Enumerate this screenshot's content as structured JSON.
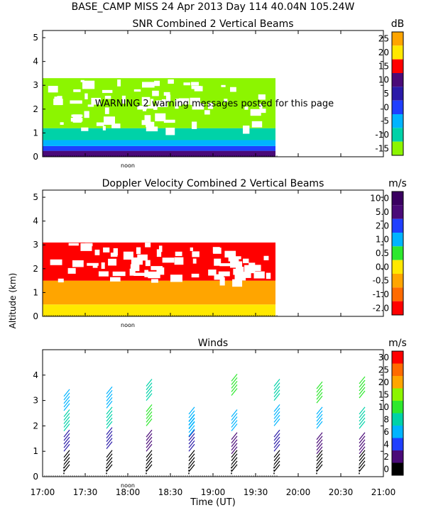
{
  "header": {
    "station_line": "BASE_CAMP MISS  24 Apr 2013 Day 114 40.04N 105.24W"
  },
  "warning": "WARNING  2 warning messages posted for this page",
  "shared": {
    "y_axis_label": "Altitude (km)",
    "x_axis_label": "Time (UT)",
    "noon_label": "noon",
    "x_tick_labels": [
      "17:00",
      "17:30",
      "18:00",
      "18:30",
      "19:00",
      "19:30",
      "20:00",
      "20:30",
      "21:00"
    ]
  },
  "colors": {
    "black": "#000000",
    "purple": "#4a0a78",
    "dark_blue": "#2a1aa8",
    "blue": "#1f3fff",
    "cyan": "#00b4ff",
    "teal": "#00d2a8",
    "green": "#2ee82e",
    "light_green": "#8cf500",
    "yellow": "#ffe800",
    "orange": "#ffa500",
    "red": "#ff0000"
  },
  "chart_data": [
    {
      "type": "heatmap",
      "title": "SNR Combined 2 Vertical Beams",
      "unit": "dB",
      "ylim": [
        0,
        5.3
      ],
      "y_ticks": [
        "0",
        "1",
        "2",
        "3",
        "4",
        "5"
      ],
      "xlim": [
        "17:00",
        "21:00"
      ],
      "data_time_range": [
        "17:00",
        "19:44"
      ],
      "colorbar_labels": [
        "25",
        "20",
        "15",
        "10",
        "5",
        "0",
        "-5",
        "-10",
        "-15"
      ],
      "colorbar_colors": [
        "#ffa500",
        "#ffe800",
        "#ff0000",
        "#4a0a78",
        "#2a1aa8",
        "#1f3fff",
        "#00b4ff",
        "#00d2a8",
        "#8cf500"
      ],
      "layers": [
        {
          "altitude_km": [
            0.0,
            0.25
          ],
          "color": "purple"
        },
        {
          "altitude_km": [
            0.25,
            0.45
          ],
          "color": "blue"
        },
        {
          "altitude_km": [
            0.45,
            0.7
          ],
          "color": "cyan"
        },
        {
          "altitude_km": [
            0.7,
            1.2
          ],
          "color": "teal"
        },
        {
          "altitude_km": [
            1.2,
            3.3
          ],
          "color": "light_green"
        }
      ]
    },
    {
      "type": "heatmap",
      "title": "Doppler Velocity Combined 2 Vertical Beams",
      "unit": "m/s",
      "ylim": [
        0,
        5.3
      ],
      "y_ticks": [
        "0",
        "1",
        "2",
        "3",
        "4",
        "5"
      ],
      "xlim": [
        "17:00",
        "21:00"
      ],
      "data_time_range": [
        "17:00",
        "19:44"
      ],
      "colorbar_labels": [
        "10.0",
        "5.0",
        "2.0",
        "1.0",
        "0.5",
        "0.0",
        "-0.5",
        "-1.0",
        "-2.0"
      ],
      "colorbar_colors": [
        "#3a0060",
        "#4a0a78",
        "#1f3fff",
        "#00b4ff",
        "#2ee82e",
        "#ffe800",
        "#ffa500",
        "#ff6a00",
        "#ff0000"
      ],
      "layers": [
        {
          "altitude_km": [
            0.0,
            0.5
          ],
          "color": "yellow"
        },
        {
          "altitude_km": [
            0.5,
            1.5
          ],
          "color": "orange"
        },
        {
          "altitude_km": [
            1.5,
            3.1
          ],
          "color": "red"
        }
      ]
    },
    {
      "type": "scatter",
      "title": "Winds",
      "unit": "m/s",
      "ylim": [
        0,
        5.0
      ],
      "y_ticks": [
        "0",
        "1",
        "2",
        "3",
        "4"
      ],
      "xlim": [
        "17:00",
        "21:00"
      ],
      "colorbar_labels": [
        "30",
        "25",
        "20",
        "15",
        "10",
        "8",
        "6",
        "4",
        "2",
        "0"
      ],
      "colorbar_colors": [
        "#ff0000",
        "#ff6a00",
        "#ffa500",
        "#8cf500",
        "#2ee82e",
        "#00d2a8",
        "#00b4ff",
        "#1f3fff",
        "#4a0a78",
        "#000000"
      ],
      "profiles": [
        {
          "time": "17:15",
          "speed_color": [
            "black",
            "dark_blue",
            "teal",
            "cyan"
          ],
          "heights_km": [
            0.2,
            1.0,
            1.8,
            2.6
          ]
        },
        {
          "time": "17:45",
          "speed_color": [
            "black",
            "dark_blue",
            "teal",
            "cyan"
          ],
          "heights_km": [
            0.2,
            1.1,
            1.9,
            2.7
          ]
        },
        {
          "time": "18:13",
          "speed_color": [
            "black",
            "purple",
            "green",
            "teal"
          ],
          "heights_km": [
            0.2,
            1.0,
            2.0,
            3.0
          ]
        },
        {
          "time": "18:43",
          "speed_color": [
            "black",
            "dark_blue",
            "cyan",
            "cyan"
          ],
          "heights_km": [
            0.2,
            1.0,
            1.6,
            1.9
          ]
        },
        {
          "time": "19:13",
          "speed_color": [
            "black",
            "purple",
            "cyan",
            "green"
          ],
          "heights_km": [
            0.2,
            0.9,
            1.8,
            3.2
          ]
        },
        {
          "time": "19:43",
          "speed_color": [
            "black",
            "dark_blue",
            "cyan",
            "teal"
          ],
          "heights_km": [
            0.2,
            1.0,
            2.0,
            3.0
          ]
        },
        {
          "time": "20:13",
          "speed_color": [
            "black",
            "purple",
            "cyan",
            "green"
          ],
          "heights_km": [
            0.2,
            0.9,
            1.9,
            2.9
          ]
        },
        {
          "time": "20:43",
          "speed_color": [
            "black",
            "purple",
            "teal",
            "green"
          ],
          "heights_km": [
            0.2,
            0.9,
            1.9,
            3.1
          ]
        }
      ]
    }
  ]
}
